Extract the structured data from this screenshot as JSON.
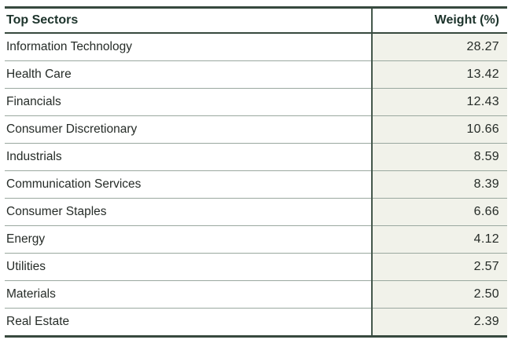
{
  "table": {
    "header": {
      "sector_label": "Top Sectors",
      "weight_label": "Weight (%)"
    },
    "rows": [
      {
        "sector": "Information Technology",
        "weight": "28.27"
      },
      {
        "sector": "Health Care",
        "weight": "13.42"
      },
      {
        "sector": "Financials",
        "weight": "12.43"
      },
      {
        "sector": "Consumer Discretionary",
        "weight": "10.66"
      },
      {
        "sector": "Industrials",
        "weight": "8.59"
      },
      {
        "sector": "Communication Services",
        "weight": "8.39"
      },
      {
        "sector": "Consumer Staples",
        "weight": "6.66"
      },
      {
        "sector": "Energy",
        "weight": "4.12"
      },
      {
        "sector": "Utilities",
        "weight": "2.57"
      },
      {
        "sector": "Materials",
        "weight": "2.50"
      },
      {
        "sector": "Real Estate",
        "weight": "2.39"
      }
    ]
  },
  "colors": {
    "heavy_border": "#37493e",
    "column_divider": "#44584c",
    "row_separator": "#9aa89f",
    "weight_column_bg": "#f1f2ea",
    "header_text": "#1c332b",
    "body_text": "#262c28"
  },
  "chart_data": {
    "type": "table",
    "title": "Top Sectors",
    "columns": [
      "Top Sectors",
      "Weight (%)"
    ],
    "rows": [
      [
        "Information Technology",
        28.27
      ],
      [
        "Health Care",
        13.42
      ],
      [
        "Financials",
        12.43
      ],
      [
        "Consumer Discretionary",
        10.66
      ],
      [
        "Industrials",
        8.59
      ],
      [
        "Communication Services",
        8.39
      ],
      [
        "Consumer Staples",
        6.66
      ],
      [
        "Energy",
        4.12
      ],
      [
        "Utilities",
        2.57
      ],
      [
        "Materials",
        2.5
      ],
      [
        "Real Estate",
        2.39
      ]
    ]
  }
}
